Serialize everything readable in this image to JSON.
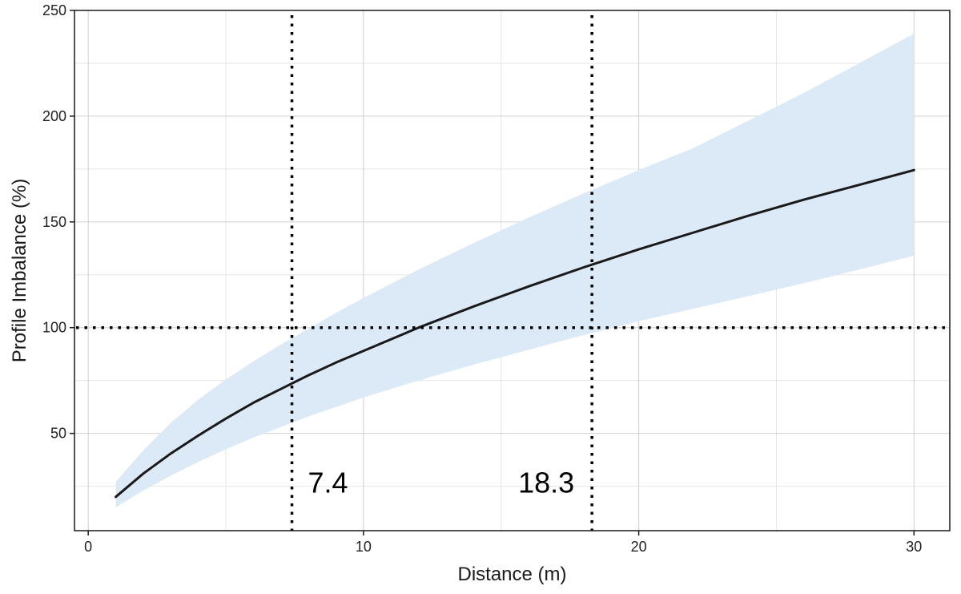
{
  "chart_data": {
    "type": "line",
    "title": "",
    "xlabel": "Distance (m)",
    "ylabel": "Profile Imbalance (%)",
    "xlim": [
      -0.5,
      31.3
    ],
    "ylim": [
      4,
      250
    ],
    "x_ticks": [
      0,
      10,
      20,
      30
    ],
    "y_ticks": [
      50,
      100,
      150,
      200,
      250
    ],
    "x_minor_grid": [
      5,
      15,
      25
    ],
    "y_minor_grid": [
      25,
      75,
      125,
      175,
      225
    ],
    "grid": true,
    "series": [
      {
        "kind": "line",
        "color": "#1a1a1a",
        "x": [
          1,
          2,
          3,
          4,
          5,
          6,
          7,
          8,
          9,
          10,
          12,
          14,
          16,
          18,
          20,
          22,
          24,
          26,
          28,
          30
        ],
        "y": [
          20,
          31,
          40.5,
          49,
          57,
          64.5,
          71,
          77.5,
          83.5,
          89,
          100,
          110,
          119.5,
          128.5,
          137,
          145,
          153,
          160.5,
          167.5,
          174.5
        ]
      },
      {
        "kind": "band",
        "color": "#dce9f6",
        "x": [
          1,
          2,
          3,
          4,
          5,
          6,
          7,
          8,
          9,
          10,
          12,
          14,
          16,
          18,
          20,
          22,
          24,
          26,
          28,
          30
        ],
        "lower": [
          15,
          23,
          30,
          36.5,
          42.5,
          48,
          53,
          58,
          62.5,
          67,
          75,
          82.5,
          89.5,
          96.5,
          103,
          109,
          115,
          121,
          127.5,
          134
        ],
        "upper": [
          27,
          42,
          55,
          66,
          75.5,
          84,
          92,
          99.5,
          107,
          114,
          127.5,
          140,
          152,
          163.5,
          174.5,
          185,
          198,
          211,
          225,
          239
        ]
      }
    ],
    "reference_lines": [
      {
        "orientation": "vertical",
        "value": 7.4,
        "style": "dotted",
        "color": "#000000"
      },
      {
        "orientation": "vertical",
        "value": 18.3,
        "style": "dotted",
        "color": "#000000"
      },
      {
        "orientation": "horizontal",
        "value": 100,
        "style": "dotted",
        "color": "#000000"
      }
    ],
    "annotations": [
      {
        "text": "7.4",
        "x": 7.4,
        "y": 27,
        "anchor": "start"
      },
      {
        "text": "18.3",
        "x": 18.3,
        "y": 27,
        "anchor": "end"
      }
    ]
  }
}
